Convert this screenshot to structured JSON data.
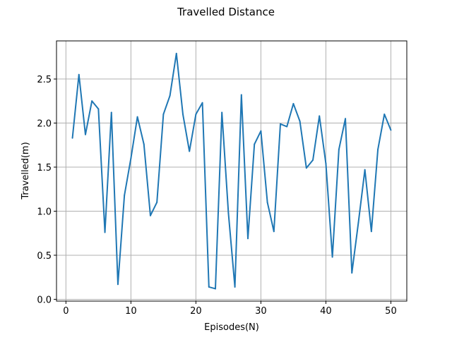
{
  "chart_data": {
    "type": "line",
    "title": "Travelled Distance",
    "xlabel": "Episodes(N)",
    "ylabel": "Travelled(m)",
    "xlim": [
      -1.45,
      52.45
    ],
    "ylim": [
      -0.0205,
      2.9326
    ],
    "xticks": [
      0,
      10,
      20,
      30,
      40,
      50
    ],
    "yticks": [
      0.0,
      0.5,
      1.0,
      1.5,
      2.0,
      2.5
    ],
    "xtick_labels": [
      "0",
      "10",
      "20",
      "30",
      "40",
      "50"
    ],
    "ytick_labels": [
      "0.0",
      "0.5",
      "1.0",
      "1.5",
      "2.0",
      "2.5"
    ],
    "grid": true,
    "color": "#1f77b4",
    "series": [
      {
        "x": [
          1,
          2,
          3,
          4,
          5,
          6,
          7,
          8,
          9,
          10,
          11,
          12,
          13,
          14,
          15,
          16,
          17,
          18,
          19,
          20,
          21,
          22,
          23,
          24,
          25,
          26,
          27,
          28,
          29,
          30,
          31,
          32,
          33,
          34,
          35,
          36,
          37,
          38,
          39,
          40,
          41,
          42,
          43,
          44,
          45,
          46,
          47,
          48,
          49,
          50
        ],
        "y": [
          1.83,
          2.55,
          1.87,
          2.25,
          2.16,
          0.76,
          2.12,
          0.17,
          1.18,
          1.6,
          2.07,
          1.76,
          0.95,
          1.1,
          2.1,
          2.31,
          2.79,
          2.1,
          1.68,
          2.1,
          2.23,
          0.14,
          0.12,
          2.12,
          0.98,
          0.14,
          2.32,
          0.69,
          1.76,
          1.91,
          1.1,
          0.77,
          1.99,
          1.96,
          2.22,
          2.02,
          1.49,
          1.58,
          2.08,
          1.54,
          0.48,
          1.7,
          2.05,
          0.3,
          0.87,
          1.47,
          0.77,
          1.7,
          2.1,
          1.92
        ]
      }
    ]
  }
}
